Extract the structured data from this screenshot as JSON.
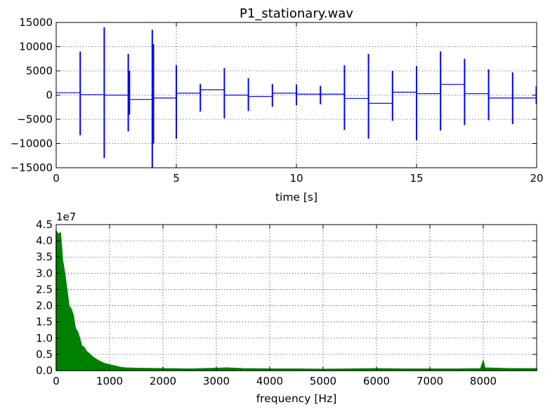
{
  "chart_data": [
    {
      "type": "line",
      "title": "P1_stationary.wav",
      "xlabel": "time [s]",
      "ylabel": "",
      "xlim": [
        0,
        20
      ],
      "ylim": [
        -15000,
        15000
      ],
      "xticks": [
        0,
        5,
        10,
        15,
        20
      ],
      "yticks": [
        -15000,
        -10000,
        -5000,
        0,
        5000,
        10000,
        15000
      ],
      "xtick_labels": [
        "0",
        "5",
        "10",
        "15",
        "20"
      ],
      "ytick_labels": [
        "−15000",
        "−10000",
        "−5000",
        "0",
        "5000",
        "10000",
        "15000"
      ],
      "grid": true,
      "color": "#0000ff",
      "segments": [
        {
          "x0": 0,
          "x1": 1,
          "y": 500
        },
        {
          "x0": 1,
          "x1": 2,
          "y": 100
        },
        {
          "x0": 2,
          "x1": 3,
          "y": 0
        },
        {
          "x0": 3,
          "x1": 4,
          "y": -900
        },
        {
          "x0": 4,
          "x1": 5,
          "y": -600
        },
        {
          "x0": 5,
          "x1": 6,
          "y": 400
        },
        {
          "x0": 6,
          "x1": 7,
          "y": 1100
        },
        {
          "x0": 7,
          "x1": 8,
          "y": 0
        },
        {
          "x0": 8,
          "x1": 9,
          "y": -300
        },
        {
          "x0": 9,
          "x1": 10,
          "y": 400
        },
        {
          "x0": 10,
          "x1": 11,
          "y": 200
        },
        {
          "x0": 11,
          "x1": 12,
          "y": 200
        },
        {
          "x0": 12,
          "x1": 13,
          "y": -700
        },
        {
          "x0": 13,
          "x1": 14,
          "y": -1700
        },
        {
          "x0": 14,
          "x1": 15,
          "y": 600
        },
        {
          "x0": 15,
          "x1": 16,
          "y": 300
        },
        {
          "x0": 16,
          "x1": 17,
          "y": 2200
        },
        {
          "x0": 17,
          "x1": 18,
          "y": 300
        },
        {
          "x0": 18,
          "x1": 19,
          "y": -600
        },
        {
          "x0": 19,
          "x1": 20,
          "y": -600
        }
      ],
      "spikes": [
        {
          "x": 1.0,
          "max": 9000,
          "min": -8300
        },
        {
          "x": 2.0,
          "max": 14000,
          "min": -13000
        },
        {
          "x": 3.0,
          "max": 8500,
          "min": -7500
        },
        {
          "x": 3.05,
          "max": 5000,
          "min": -4000
        },
        {
          "x": 4.0,
          "max": 13500,
          "min": -15000
        },
        {
          "x": 4.05,
          "max": 10500,
          "min": -10000
        },
        {
          "x": 5.0,
          "max": 6200,
          "min": -9000
        },
        {
          "x": 6.0,
          "max": 2300,
          "min": -3400
        },
        {
          "x": 7.0,
          "max": 5600,
          "min": -4800
        },
        {
          "x": 8.0,
          "max": 3500,
          "min": -3300
        },
        {
          "x": 9.0,
          "max": 2300,
          "min": -2400
        },
        {
          "x": 10.0,
          "max": 2200,
          "min": -2100
        },
        {
          "x": 11.0,
          "max": 1900,
          "min": -1900
        },
        {
          "x": 12.0,
          "max": 6200,
          "min": -7200
        },
        {
          "x": 13.0,
          "max": 8500,
          "min": -9000
        },
        {
          "x": 14.0,
          "max": 5000,
          "min": -5300
        },
        {
          "x": 15.0,
          "max": 6000,
          "min": -9300
        },
        {
          "x": 16.0,
          "max": 9000,
          "min": -7300
        },
        {
          "x": 17.0,
          "max": 7500,
          "min": -6200
        },
        {
          "x": 18.0,
          "max": 5300,
          "min": -5200
        },
        {
          "x": 19.0,
          "max": 4700,
          "min": -6000
        },
        {
          "x": 20.0,
          "max": 1800,
          "min": -1800
        }
      ]
    },
    {
      "type": "area",
      "title": "",
      "xlabel": "frequency [Hz]",
      "ylabel": "",
      "offset_label": "1e7",
      "xlim": [
        0,
        9000
      ],
      "ylim": [
        0,
        4.5
      ],
      "xticks": [
        0,
        1000,
        2000,
        3000,
        4000,
        5000,
        6000,
        7000,
        8000
      ],
      "yticks": [
        0.0,
        0.5,
        1.0,
        1.5,
        2.0,
        2.5,
        3.0,
        3.5,
        4.0,
        4.5
      ],
      "xtick_labels": [
        "0",
        "1000",
        "2000",
        "3000",
        "4000",
        "5000",
        "6000",
        "7000",
        "8000"
      ],
      "ytick_labels": [
        "0.0",
        "0.5",
        "1.0",
        "1.5",
        "2.0",
        "2.5",
        "3.0",
        "3.5",
        "4.0",
        "4.5"
      ],
      "grid": true,
      "color": "#008000",
      "spectrum": [
        [
          0,
          4.3
        ],
        [
          40,
          4.2
        ],
        [
          80,
          4.25
        ],
        [
          120,
          3.4
        ],
        [
          160,
          3.0
        ],
        [
          200,
          2.5
        ],
        [
          240,
          2.0
        ],
        [
          280,
          1.9
        ],
        [
          320,
          1.7
        ],
        [
          360,
          1.3
        ],
        [
          400,
          1.2
        ],
        [
          440,
          1.0
        ],
        [
          480,
          0.75
        ],
        [
          520,
          0.72
        ],
        [
          560,
          0.6
        ],
        [
          600,
          0.55
        ],
        [
          700,
          0.4
        ],
        [
          800,
          0.3
        ],
        [
          900,
          0.22
        ],
        [
          1000,
          0.18
        ],
        [
          1100,
          0.14
        ],
        [
          1200,
          0.1
        ],
        [
          1300,
          0.08
        ],
        [
          1500,
          0.07
        ],
        [
          2000,
          0.06
        ],
        [
          2500,
          0.05
        ],
        [
          3000,
          0.07
        ],
        [
          3200,
          0.08
        ],
        [
          3500,
          0.06
        ],
        [
          4000,
          0.05
        ],
        [
          4500,
          0.05
        ],
        [
          5000,
          0.04
        ],
        [
          5500,
          0.05
        ],
        [
          6000,
          0.06
        ],
        [
          6500,
          0.05
        ],
        [
          7000,
          0.05
        ],
        [
          7500,
          0.05
        ],
        [
          7950,
          0.06
        ],
        [
          8000,
          0.3
        ],
        [
          8030,
          0.08
        ],
        [
          8500,
          0.06
        ],
        [
          9000,
          0.06
        ]
      ]
    }
  ]
}
